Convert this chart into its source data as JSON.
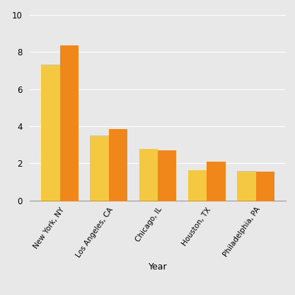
{
  "categories": [
    "New York, NY",
    "Los Angeles, CA",
    "Chicago, IL",
    "Houston, TX",
    "Philadelphia, PA"
  ],
  "values_1990": [
    7.32,
    3.49,
    2.78,
    1.63,
    1.59
  ],
  "values_2012": [
    8.34,
    3.86,
    2.69,
    2.1,
    1.55
  ],
  "color_1990": "#F5C842",
  "color_2012": "#F0871A",
  "xlabel": "Year",
  "ylabel": "",
  "ylim": [
    0,
    10
  ],
  "yticks": [
    0,
    2,
    4,
    6,
    8,
    10
  ],
  "background_color": "#E8E8E8",
  "plot_bg_color": "#E8E8E8",
  "bar_width": 0.38,
  "title": "",
  "grid_color": "#FFFFFF",
  "legend_edge_color": "#CCCCCC",
  "legend_face_color": "#F0F0F0"
}
